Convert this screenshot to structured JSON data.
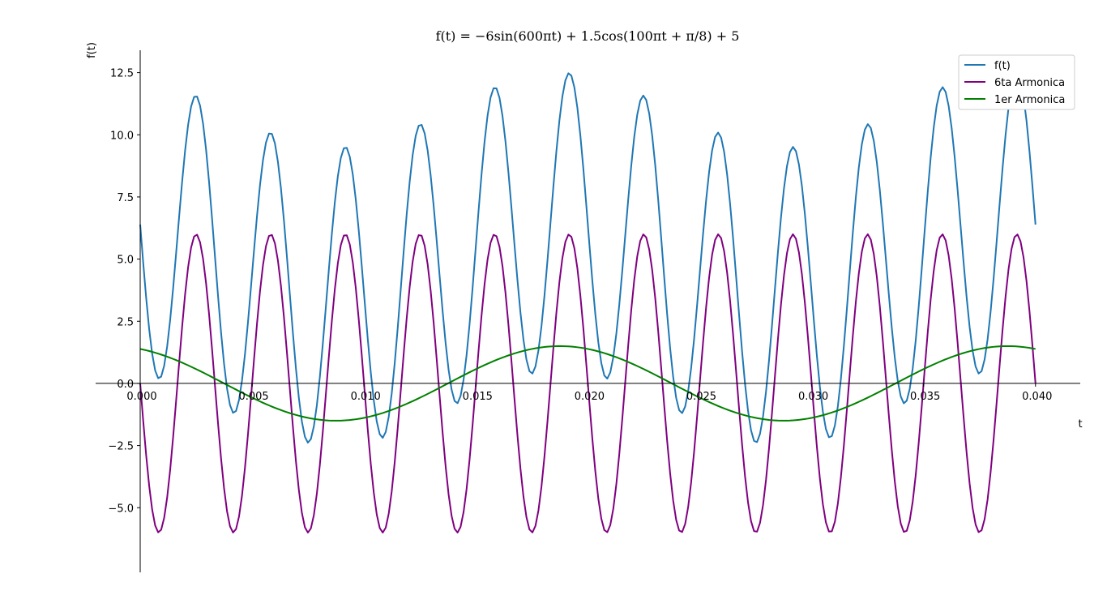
{
  "chart_data": {
    "type": "line",
    "title": "f(t) = −6sin(600πt) + 1.5cos(100πt + π/8) + 5",
    "xlabel": "t",
    "ylabel": "f(t)",
    "xlim": [
      0,
      0.042
    ],
    "ylim": [
      -7.6,
      13.4
    ],
    "x_ticks": [
      0.0,
      0.005,
      0.01,
      0.015,
      0.02,
      0.025,
      0.03,
      0.035,
      0.04
    ],
    "x_tick_labels": [
      "0.000",
      "0.005",
      "0.010",
      "0.015",
      "0.020",
      "0.025",
      "0.030",
      "0.035",
      "0.040"
    ],
    "y_ticks": [
      -5.0,
      -2.5,
      0.0,
      2.5,
      5.0,
      7.5,
      10.0,
      12.5
    ],
    "y_tick_labels": [
      "−5.0",
      "−2.5",
      "0.0",
      "2.5",
      "5.0",
      "7.5",
      "10.0",
      "12.5"
    ],
    "legend_position": "top-right",
    "grid": false,
    "t_sampling": {
      "start": 0,
      "end": 0.04,
      "n_points": 300
    },
    "series": [
      {
        "name": "f(t)",
        "color": "#1f77b4",
        "formula": "-6*sin(600*pi*t) + 1.5*cos(100*pi*t + pi/8) + 5"
      },
      {
        "name": "6ta Armonica",
        "color": "#800080",
        "formula": "-6*sin(600*pi*t)"
      },
      {
        "name": "1er Armonica",
        "color": "#008000",
        "formula": "1.5*cos(100*pi*t + pi/8)"
      }
    ]
  }
}
